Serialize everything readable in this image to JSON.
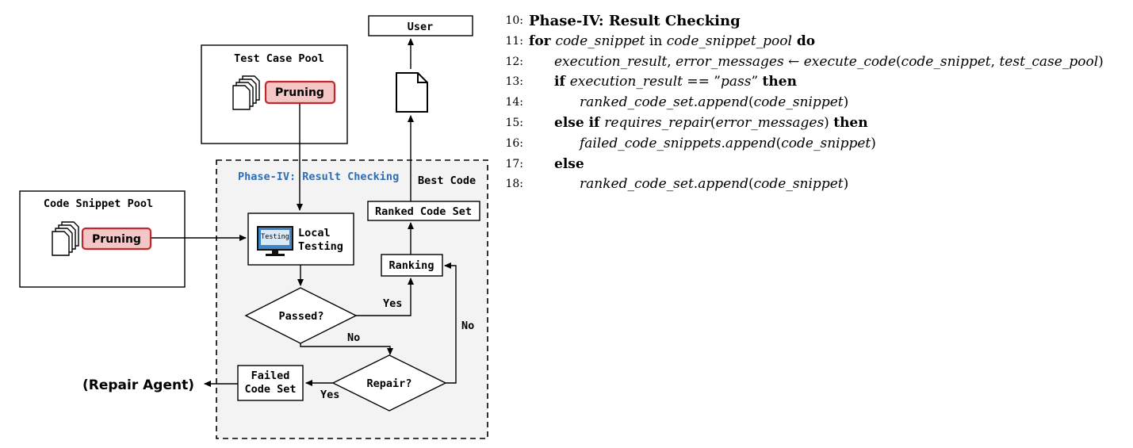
{
  "diagram": {
    "user_label": "User",
    "test_case_pool_title": "Test Case Pool",
    "test_pruning_label": "Pruning",
    "code_snippet_pool_title": "Code Snippet Pool",
    "code_pruning_label": "Pruning",
    "phase_title": "Phase-IV: Result Checking",
    "best_code_label": "Best Code",
    "ranked_code_set_label": "Ranked Code Set",
    "local_testing_line1": "Local",
    "local_testing_line2": "Testing",
    "testing_screen_label": "Testing",
    "ranking_label": "Ranking",
    "passed_label": "Passed?",
    "yes_label_1": "Yes",
    "no_label_1": "No",
    "no_label_2": "No",
    "repair_label": "Repair?",
    "yes_label_2": "Yes",
    "failed_line1": "Failed",
    "failed_line2": "Code Set",
    "repair_agent_label": "(Repair Agent)"
  },
  "algorithm": {
    "lines": [
      {
        "num": "10:",
        "parts": [
          {
            "t": "Phase-IV: Result Checking",
            "s": "head"
          }
        ]
      },
      {
        "num": "11:",
        "parts": [
          {
            "t": "for ",
            "s": "kw"
          },
          {
            "t": "code_snippet",
            "s": "var"
          },
          {
            "t": " in ",
            "s": ""
          },
          {
            "t": "code_snippet_pool",
            "s": "var"
          },
          {
            "t": " do",
            "s": "kw"
          }
        ]
      },
      {
        "num": "12:",
        "indent": 1,
        "parts": [
          {
            "t": "execution_result",
            "s": "var"
          },
          {
            "t": ", ",
            "s": ""
          },
          {
            "t": "error_messages",
            "s": "var"
          },
          {
            "t": " ← ",
            "s": ""
          },
          {
            "t": "execute_code",
            "s": "var"
          },
          {
            "t": "(",
            "s": ""
          },
          {
            "t": "code_snippet",
            "s": "var"
          },
          {
            "t": ", ",
            "s": ""
          },
          {
            "t": "test_case_pool",
            "s": "var"
          },
          {
            "t": ")",
            "s": ""
          }
        ]
      },
      {
        "num": "13:",
        "indent": 1,
        "parts": [
          {
            "t": "if ",
            "s": "kw"
          },
          {
            "t": "execution_result",
            "s": "var"
          },
          {
            "t": " == ”",
            "s": ""
          },
          {
            "t": "pass",
            "s": "var"
          },
          {
            "t": "” ",
            "s": ""
          },
          {
            "t": "then",
            "s": "kw"
          }
        ]
      },
      {
        "num": "14:",
        "indent": 2,
        "parts": [
          {
            "t": "ranked_code_set",
            "s": "var"
          },
          {
            "t": ".",
            "s": ""
          },
          {
            "t": "append",
            "s": "var"
          },
          {
            "t": "(",
            "s": ""
          },
          {
            "t": "code_snippet",
            "s": "var"
          },
          {
            "t": ")",
            "s": ""
          }
        ]
      },
      {
        "num": "15:",
        "indent": 1,
        "parts": [
          {
            "t": "else if ",
            "s": "kw"
          },
          {
            "t": "requires_repair",
            "s": "var"
          },
          {
            "t": "(",
            "s": ""
          },
          {
            "t": "error_messages",
            "s": "var"
          },
          {
            "t": ") ",
            "s": ""
          },
          {
            "t": "then",
            "s": "kw"
          }
        ]
      },
      {
        "num": "16:",
        "indent": 2,
        "parts": [
          {
            "t": "failed_code_snippets",
            "s": "var"
          },
          {
            "t": ".",
            "s": ""
          },
          {
            "t": "append",
            "s": "var"
          },
          {
            "t": "(",
            "s": ""
          },
          {
            "t": "code_snippet",
            "s": "var"
          },
          {
            "t": ")",
            "s": ""
          }
        ]
      },
      {
        "num": "17:",
        "indent": 1,
        "parts": [
          {
            "t": "else",
            "s": "kw"
          }
        ]
      },
      {
        "num": "18:",
        "indent": 2,
        "parts": [
          {
            "t": "ranked_code_set",
            "s": "var"
          },
          {
            "t": ".",
            "s": ""
          },
          {
            "t": "append",
            "s": "var"
          },
          {
            "t": "(",
            "s": ""
          },
          {
            "t": "code_snippet",
            "s": "var"
          },
          {
            "t": ")",
            "s": ""
          }
        ]
      }
    ]
  },
  "colors": {
    "pruning_fill": "#f4c6c6",
    "pruning_border": "#c0282e",
    "phase_title": "#2f6db5",
    "phase_background": "#f3f3f3",
    "screen_blue": "#3f84c8"
  }
}
